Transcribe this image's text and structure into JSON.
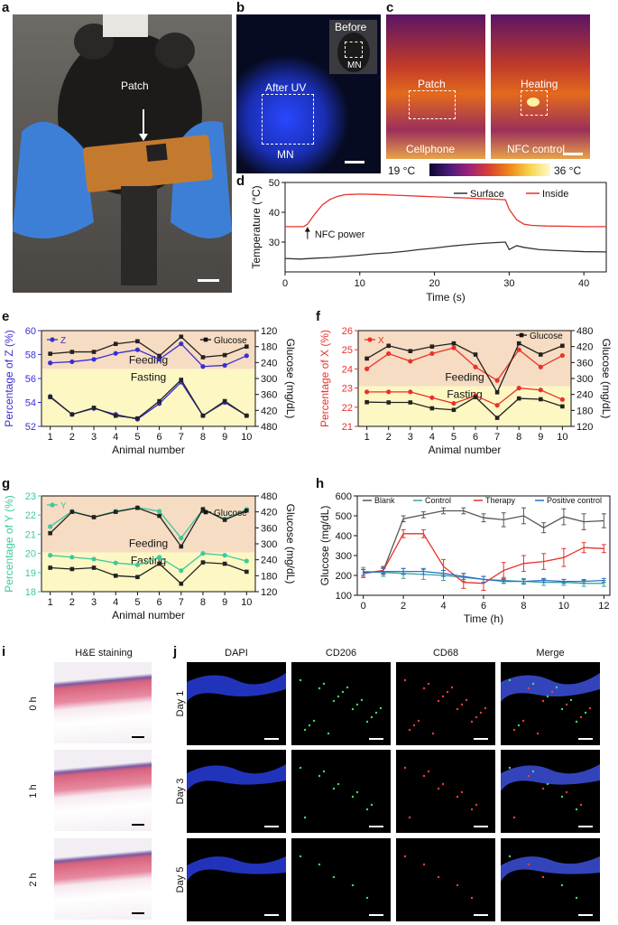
{
  "panels": {
    "a": "a",
    "b": "b",
    "c": "c",
    "d": "d",
    "e": "e",
    "f": "f",
    "g": "g",
    "h": "h",
    "i": "i",
    "j": "j"
  },
  "panel_a": {
    "patch_label": "Patch"
  },
  "panel_b": {
    "before": "Before",
    "mn_small": "MN",
    "after_uv": "After UV",
    "mn": "MN"
  },
  "panel_c": {
    "patch": "Patch",
    "cellphone": "Cellphone",
    "heating": "Heating",
    "nfc_control": "NFC control",
    "scale_min": "19 °C",
    "scale_max": "36 °C"
  },
  "colors": {
    "surface": "#333333",
    "inside": "#e8322c",
    "z": "#3a2fd0",
    "x": "#e8322c",
    "y": "#3ec99a",
    "glucose": "#222222",
    "feeding_bg": "#f6dcc2",
    "fasting_bg": "#fdf7c4",
    "blank": "#555555",
    "control": "#3aa3a0",
    "therapy": "#e8322c",
    "positive": "#2a6fc9"
  },
  "chart_data": [
    {
      "id": "d",
      "type": "line",
      "title": "",
      "xlabel": "Time (s)",
      "ylabel": "Temperature (°C)",
      "xlim": [
        0,
        43
      ],
      "ylim": [
        20,
        50
      ],
      "xticks": [
        0,
        10,
        20,
        30,
        40
      ],
      "yticks": [
        30,
        40,
        50
      ],
      "annotation": "NFC power",
      "series": [
        {
          "name": "Surface",
          "x": [
            0,
            2,
            4,
            6,
            8,
            10,
            12,
            14,
            16,
            18,
            20,
            22,
            24,
            26,
            28,
            29.5,
            30,
            31,
            32,
            34,
            36,
            38,
            40,
            43
          ],
          "y": [
            24.5,
            24.3,
            24.6,
            24.8,
            25.2,
            25.6,
            26.1,
            26.4,
            26.9,
            27.5,
            28.0,
            28.6,
            29.1,
            29.5,
            29.8,
            30.0,
            27.5,
            28.8,
            28.2,
            27.5,
            27.2,
            27.0,
            26.8,
            26.7
          ]
        },
        {
          "name": "Inside",
          "x": [
            0,
            2.5,
            3,
            4,
            5,
            6,
            7,
            8,
            9,
            10,
            12,
            14,
            16,
            18,
            20,
            22,
            24,
            26,
            28,
            29.5,
            30,
            31,
            32,
            33,
            35,
            38,
            40,
            43
          ],
          "y": [
            35.2,
            35.2,
            36.0,
            39.5,
            42.5,
            44.3,
            45.3,
            45.9,
            46.0,
            46.1,
            46.0,
            45.8,
            45.6,
            45.4,
            45.2,
            45.0,
            44.8,
            44.6,
            44.4,
            44.2,
            41.0,
            37.5,
            36.0,
            35.6,
            35.4,
            35.3,
            35.2,
            35.2
          ]
        }
      ]
    },
    {
      "id": "e",
      "type": "line",
      "xlabel": "Animal number",
      "ylabel": "Percentage of Z (%)",
      "ylabel_right": "Glucose (mg/dL)",
      "region_top": "Feeding",
      "region_bottom": "Fasting",
      "x": [
        1,
        2,
        3,
        4,
        5,
        6,
        7,
        8,
        9,
        10
      ],
      "ylim": [
        52,
        60
      ],
      "yticks": [
        52,
        54,
        56,
        58,
        60
      ],
      "ylim_right": [
        480,
        120
      ],
      "yticks_right": [
        120,
        180,
        240,
        300,
        360,
        420,
        480
      ],
      "legend_left": "Z",
      "legend_right": "Glucose",
      "series": [
        {
          "name": "Z feeding",
          "axis": "left",
          "values": [
            57.3,
            57.4,
            57.6,
            58.1,
            58.4,
            57.6,
            58.9,
            57.0,
            57.1,
            57.9
          ]
        },
        {
          "name": "Glucose feeding",
          "axis": "right",
          "values": [
            207,
            200,
            200,
            170,
            160,
            215,
            143,
            220,
            212,
            180
          ]
        },
        {
          "name": "Z fasting",
          "axis": "left",
          "values": [
            54.5,
            53.0,
            53.5,
            53.0,
            52.6,
            53.9,
            55.7,
            52.9,
            54.0,
            52.9
          ]
        },
        {
          "name": "Glucose fasting",
          "axis": "right",
          "values": [
            370,
            435,
            410,
            440,
            450,
            385,
            305,
            440,
            385,
            440
          ]
        }
      ]
    },
    {
      "id": "f",
      "type": "line",
      "xlabel": "Animal number",
      "ylabel": "Percentage of X (%)",
      "ylabel_right": "Glucose (mg/dL)",
      "region_top": "Feeding",
      "region_bottom": "Fasting",
      "x": [
        1,
        2,
        3,
        4,
        5,
        6,
        7,
        8,
        9,
        10
      ],
      "ylim": [
        21,
        26
      ],
      "yticks": [
        21,
        22,
        23,
        24,
        25,
        26
      ],
      "ylim_right": [
        120,
        480
      ],
      "yticks_right": [
        120,
        180,
        240,
        300,
        360,
        420,
        480
      ],
      "legend_left": "X",
      "legend_right": "Glucose",
      "series": [
        {
          "name": "X feeding",
          "axis": "left",
          "values": [
            24.0,
            24.8,
            24.4,
            24.8,
            25.1,
            24.1,
            23.4,
            25.0,
            24.1,
            24.7
          ]
        },
        {
          "name": "Glucose feeding",
          "axis": "right",
          "values": [
            375,
            423,
            403,
            420,
            432,
            390,
            248,
            432,
            390,
            423
          ]
        },
        {
          "name": "X fasting",
          "axis": "left",
          "values": [
            22.8,
            22.8,
            22.8,
            22.5,
            22.2,
            22.6,
            22.1,
            23.0,
            22.9,
            22.4
          ]
        },
        {
          "name": "Glucose fasting",
          "axis": "right",
          "values": [
            211,
            210,
            210,
            188,
            182,
            230,
            152,
            225,
            222,
            195
          ]
        }
      ]
    },
    {
      "id": "g",
      "type": "line",
      "xlabel": "Animal number",
      "ylabel": "Percentage of Y (%)",
      "ylabel_right": "Glucose (mg/dL)",
      "region_top": "Feeding",
      "region_bottom": "Fasting",
      "x": [
        1,
        2,
        3,
        4,
        5,
        6,
        7,
        8,
        9,
        10
      ],
      "ylim": [
        18,
        23
      ],
      "yticks": [
        18,
        19,
        20,
        21,
        22,
        23
      ],
      "ylim_right": [
        120,
        480
      ],
      "yticks_right": [
        120,
        180,
        240,
        300,
        360,
        420,
        480
      ],
      "legend_left": "Y",
      "legend_right": "Glucose",
      "series": [
        {
          "name": "Y feeding",
          "axis": "left",
          "values": [
            21.4,
            22.2,
            21.9,
            22.2,
            22.4,
            22.2,
            20.8,
            22.3,
            21.8,
            22.3
          ]
        },
        {
          "name": "Glucose feeding",
          "axis": "right",
          "values": [
            340,
            420,
            400,
            420,
            435,
            405,
            290,
            430,
            390,
            425
          ]
        },
        {
          "name": "Y fasting",
          "axis": "left",
          "values": [
            19.9,
            19.8,
            19.7,
            19.5,
            19.4,
            19.8,
            19.1,
            20.0,
            19.9,
            19.6
          ]
        },
        {
          "name": "Glucose fasting",
          "axis": "right",
          "values": [
            210,
            205,
            210,
            180,
            175,
            225,
            150,
            230,
            225,
            195
          ]
        }
      ]
    },
    {
      "id": "h",
      "type": "line",
      "xlabel": "Time (h)",
      "ylabel": "Glucose (mg/dL)",
      "xlim": [
        0,
        12
      ],
      "ylim": [
        100,
        600
      ],
      "xticks": [
        0,
        2,
        4,
        6,
        8,
        10,
        12
      ],
      "yticks": [
        100,
        200,
        300,
        400,
        500,
        600
      ],
      "series": [
        {
          "name": "Blank",
          "x": [
            0,
            1,
            2,
            3,
            4,
            5,
            6,
            7,
            8,
            9,
            10,
            11,
            12
          ],
          "y": [
            210,
            225,
            485,
            505,
            525,
            525,
            490,
            480,
            500,
            440,
            495,
            470,
            475
          ],
          "err": [
            20,
            20,
            15,
            15,
            15,
            15,
            20,
            35,
            40,
            25,
            40,
            40,
            35
          ]
        },
        {
          "name": "Control",
          "x": [
            0,
            1,
            2,
            3,
            4,
            5,
            6,
            7,
            8,
            9,
            10,
            11,
            12
          ],
          "y": [
            220,
            215,
            210,
            205,
            200,
            190,
            180,
            175,
            170,
            165,
            165,
            160,
            160
          ],
          "err": [
            20,
            20,
            25,
            25,
            25,
            20,
            15,
            15,
            15,
            15,
            15,
            15,
            15
          ]
        },
        {
          "name": "Therapy",
          "x": [
            0,
            1,
            2,
            3,
            4,
            5,
            6,
            7,
            8,
            9,
            10,
            11,
            12
          ],
          "y": [
            210,
            225,
            410,
            410,
            245,
            165,
            160,
            225,
            260,
            270,
            290,
            340,
            335
          ],
          "err": [
            20,
            15,
            20,
            20,
            35,
            30,
            35,
            40,
            40,
            40,
            45,
            25,
            20
          ]
        },
        {
          "name": "Positive control",
          "x": [
            0,
            1,
            2,
            3,
            4,
            5,
            6,
            7,
            8,
            9,
            10,
            11,
            12
          ],
          "y": [
            215,
            220,
            220,
            220,
            210,
            195,
            180,
            170,
            170,
            175,
            170,
            170,
            175
          ],
          "err": [
            15,
            15,
            15,
            15,
            15,
            15,
            15,
            10,
            10,
            10,
            10,
            10,
            10
          ]
        }
      ]
    }
  ],
  "panel_i": {
    "title": "H&E staining",
    "rows": [
      "0 h",
      "1 h",
      "2 h"
    ]
  },
  "panel_j": {
    "columns": [
      "DAPI",
      "CD206",
      "CD68",
      "Merge"
    ],
    "rows": [
      "Day 1",
      "Day 3",
      "Day 5"
    ]
  }
}
